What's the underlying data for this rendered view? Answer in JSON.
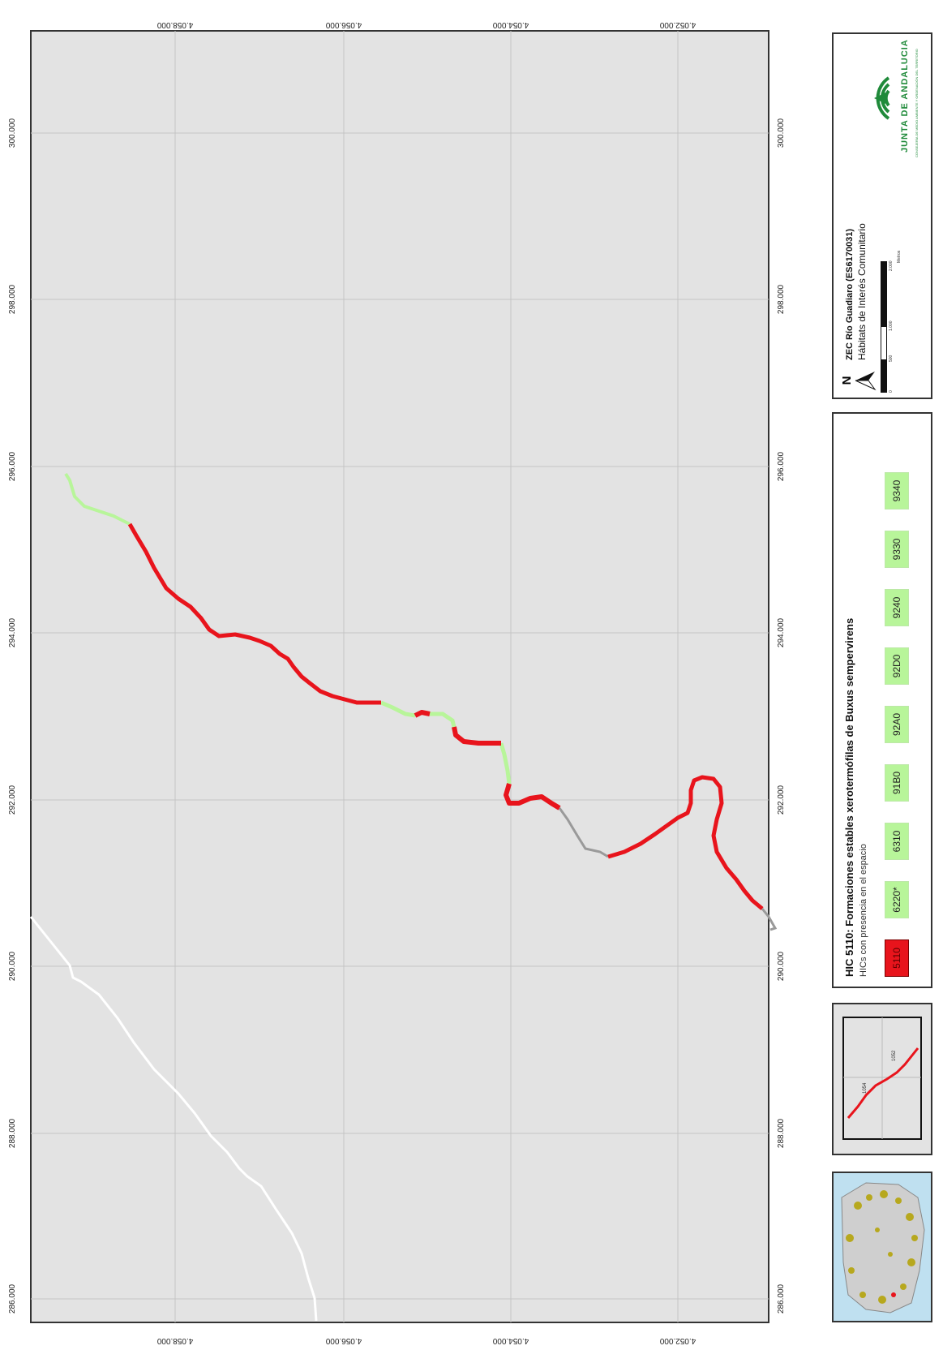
{
  "map": {
    "x_axis_labels": [
      "286.000",
      "288.000",
      "290.000",
      "292.000",
      "294.000",
      "296.000",
      "298.000",
      "300.000"
    ],
    "y_axis_labels": [
      "4.058.000",
      "4.056.000",
      "4.054.000",
      "4.052.000"
    ]
  },
  "legend": {
    "title": "HIC 5110: Formaciones estables xerotermófilas de Buxus sempervirens",
    "subtitle": "HICs con presencia en el espacio",
    "habitats": [
      {
        "code": "5110",
        "color": "#e8141c"
      },
      {
        "code": "6220*",
        "color": "#b8f59a"
      },
      {
        "code": "6310",
        "color": "#b8f59a"
      },
      {
        "code": "91B0",
        "color": "#b8f59a"
      },
      {
        "code": "92A0",
        "color": "#b8f59a"
      },
      {
        "code": "92D0",
        "color": "#b8f59a"
      },
      {
        "code": "9240",
        "color": "#b8f59a"
      },
      {
        "code": "9330",
        "color": "#b8f59a"
      },
      {
        "code": "9340",
        "color": "#b8f59a"
      }
    ]
  },
  "title_box": {
    "north": "N",
    "line1": "ZEC Río Guadiaro (ES6170031)",
    "line2": "Hábitats de Interés Comunitario",
    "scale_labels": [
      "0",
      "500",
      "1.000",
      "2.000"
    ],
    "scale_unit": "Metros",
    "logo_text": "JUNTA DE ANDALUCIA",
    "logo_subtext": "CONSEJERÍA DE MEDIO AMBIENTE Y ORDENACIÓN DEL TERRITORIO"
  },
  "inset": {
    "sheet_labels": [
      "1054",
      "1052"
    ]
  },
  "colors": {
    "map_bg": "#e3e3e3",
    "hic_5110": "#e8141c",
    "other_hic": "#b8f59a",
    "frame": "#333333",
    "logo_green": "#1f8a3a"
  }
}
